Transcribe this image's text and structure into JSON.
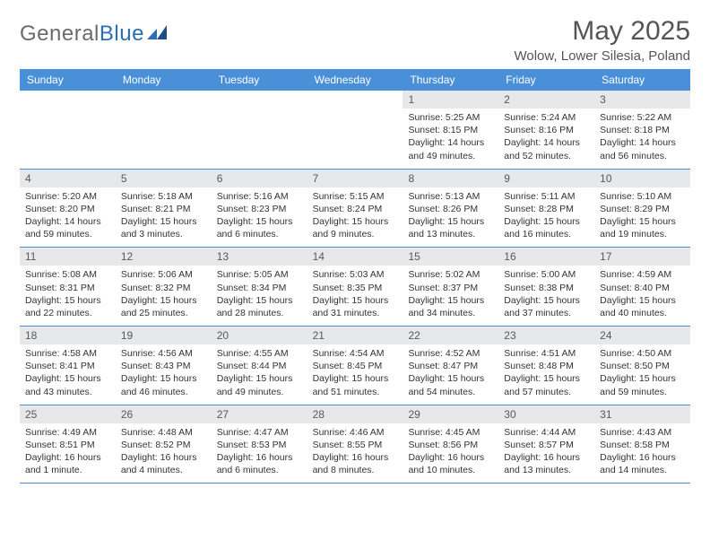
{
  "logo": {
    "part1": "General",
    "part2": "Blue"
  },
  "title": "May 2025",
  "location": "Wolow, Lower Silesia, Poland",
  "colors": {
    "header_bg": "#4a90d9",
    "header_text": "#ffffff",
    "daynum_bg": "#e7e8e9",
    "text": "#333333",
    "logo_gray": "#6b6b6b",
    "logo_blue": "#2a6fb5"
  },
  "weekdays": [
    "Sunday",
    "Monday",
    "Tuesday",
    "Wednesday",
    "Thursday",
    "Friday",
    "Saturday"
  ],
  "weeks": [
    [
      {
        "n": "",
        "sr": "",
        "ss": "",
        "dl": ""
      },
      {
        "n": "",
        "sr": "",
        "ss": "",
        "dl": ""
      },
      {
        "n": "",
        "sr": "",
        "ss": "",
        "dl": ""
      },
      {
        "n": "",
        "sr": "",
        "ss": "",
        "dl": ""
      },
      {
        "n": "1",
        "sr": "Sunrise: 5:25 AM",
        "ss": "Sunset: 8:15 PM",
        "dl": "Daylight: 14 hours and 49 minutes."
      },
      {
        "n": "2",
        "sr": "Sunrise: 5:24 AM",
        "ss": "Sunset: 8:16 PM",
        "dl": "Daylight: 14 hours and 52 minutes."
      },
      {
        "n": "3",
        "sr": "Sunrise: 5:22 AM",
        "ss": "Sunset: 8:18 PM",
        "dl": "Daylight: 14 hours and 56 minutes."
      }
    ],
    [
      {
        "n": "4",
        "sr": "Sunrise: 5:20 AM",
        "ss": "Sunset: 8:20 PM",
        "dl": "Daylight: 14 hours and 59 minutes."
      },
      {
        "n": "5",
        "sr": "Sunrise: 5:18 AM",
        "ss": "Sunset: 8:21 PM",
        "dl": "Daylight: 15 hours and 3 minutes."
      },
      {
        "n": "6",
        "sr": "Sunrise: 5:16 AM",
        "ss": "Sunset: 8:23 PM",
        "dl": "Daylight: 15 hours and 6 minutes."
      },
      {
        "n": "7",
        "sr": "Sunrise: 5:15 AM",
        "ss": "Sunset: 8:24 PM",
        "dl": "Daylight: 15 hours and 9 minutes."
      },
      {
        "n": "8",
        "sr": "Sunrise: 5:13 AM",
        "ss": "Sunset: 8:26 PM",
        "dl": "Daylight: 15 hours and 13 minutes."
      },
      {
        "n": "9",
        "sr": "Sunrise: 5:11 AM",
        "ss": "Sunset: 8:28 PM",
        "dl": "Daylight: 15 hours and 16 minutes."
      },
      {
        "n": "10",
        "sr": "Sunrise: 5:10 AM",
        "ss": "Sunset: 8:29 PM",
        "dl": "Daylight: 15 hours and 19 minutes."
      }
    ],
    [
      {
        "n": "11",
        "sr": "Sunrise: 5:08 AM",
        "ss": "Sunset: 8:31 PM",
        "dl": "Daylight: 15 hours and 22 minutes."
      },
      {
        "n": "12",
        "sr": "Sunrise: 5:06 AM",
        "ss": "Sunset: 8:32 PM",
        "dl": "Daylight: 15 hours and 25 minutes."
      },
      {
        "n": "13",
        "sr": "Sunrise: 5:05 AM",
        "ss": "Sunset: 8:34 PM",
        "dl": "Daylight: 15 hours and 28 minutes."
      },
      {
        "n": "14",
        "sr": "Sunrise: 5:03 AM",
        "ss": "Sunset: 8:35 PM",
        "dl": "Daylight: 15 hours and 31 minutes."
      },
      {
        "n": "15",
        "sr": "Sunrise: 5:02 AM",
        "ss": "Sunset: 8:37 PM",
        "dl": "Daylight: 15 hours and 34 minutes."
      },
      {
        "n": "16",
        "sr": "Sunrise: 5:00 AM",
        "ss": "Sunset: 8:38 PM",
        "dl": "Daylight: 15 hours and 37 minutes."
      },
      {
        "n": "17",
        "sr": "Sunrise: 4:59 AM",
        "ss": "Sunset: 8:40 PM",
        "dl": "Daylight: 15 hours and 40 minutes."
      }
    ],
    [
      {
        "n": "18",
        "sr": "Sunrise: 4:58 AM",
        "ss": "Sunset: 8:41 PM",
        "dl": "Daylight: 15 hours and 43 minutes."
      },
      {
        "n": "19",
        "sr": "Sunrise: 4:56 AM",
        "ss": "Sunset: 8:43 PM",
        "dl": "Daylight: 15 hours and 46 minutes."
      },
      {
        "n": "20",
        "sr": "Sunrise: 4:55 AM",
        "ss": "Sunset: 8:44 PM",
        "dl": "Daylight: 15 hours and 49 minutes."
      },
      {
        "n": "21",
        "sr": "Sunrise: 4:54 AM",
        "ss": "Sunset: 8:45 PM",
        "dl": "Daylight: 15 hours and 51 minutes."
      },
      {
        "n": "22",
        "sr": "Sunrise: 4:52 AM",
        "ss": "Sunset: 8:47 PM",
        "dl": "Daylight: 15 hours and 54 minutes."
      },
      {
        "n": "23",
        "sr": "Sunrise: 4:51 AM",
        "ss": "Sunset: 8:48 PM",
        "dl": "Daylight: 15 hours and 57 minutes."
      },
      {
        "n": "24",
        "sr": "Sunrise: 4:50 AM",
        "ss": "Sunset: 8:50 PM",
        "dl": "Daylight: 15 hours and 59 minutes."
      }
    ],
    [
      {
        "n": "25",
        "sr": "Sunrise: 4:49 AM",
        "ss": "Sunset: 8:51 PM",
        "dl": "Daylight: 16 hours and 1 minute."
      },
      {
        "n": "26",
        "sr": "Sunrise: 4:48 AM",
        "ss": "Sunset: 8:52 PM",
        "dl": "Daylight: 16 hours and 4 minutes."
      },
      {
        "n": "27",
        "sr": "Sunrise: 4:47 AM",
        "ss": "Sunset: 8:53 PM",
        "dl": "Daylight: 16 hours and 6 minutes."
      },
      {
        "n": "28",
        "sr": "Sunrise: 4:46 AM",
        "ss": "Sunset: 8:55 PM",
        "dl": "Daylight: 16 hours and 8 minutes."
      },
      {
        "n": "29",
        "sr": "Sunrise: 4:45 AM",
        "ss": "Sunset: 8:56 PM",
        "dl": "Daylight: 16 hours and 10 minutes."
      },
      {
        "n": "30",
        "sr": "Sunrise: 4:44 AM",
        "ss": "Sunset: 8:57 PM",
        "dl": "Daylight: 16 hours and 13 minutes."
      },
      {
        "n": "31",
        "sr": "Sunrise: 4:43 AM",
        "ss": "Sunset: 8:58 PM",
        "dl": "Daylight: 16 hours and 14 minutes."
      }
    ]
  ]
}
